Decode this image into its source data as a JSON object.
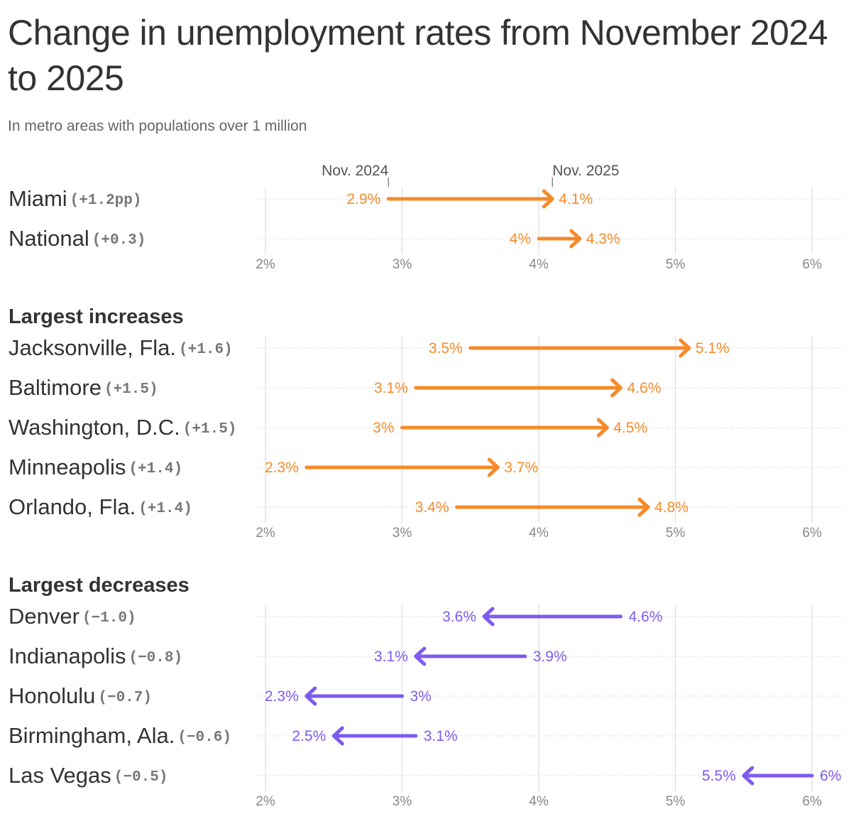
{
  "title": "Change in unemployment rates from November 2024 to 2025",
  "subtitle": "In metro areas with populations over 1 million",
  "colors": {
    "increase": "#f58b2a",
    "decrease": "#7e5bef",
    "text": "#333333",
    "muted": "#888888",
    "grid": "#dddddd"
  },
  "chart_data": {
    "type": "dumbbell-arrow",
    "xlim": [
      2,
      6
    ],
    "ticks": [
      "2%",
      "3%",
      "4%",
      "5%",
      "6%"
    ],
    "tick_values": [
      2,
      3,
      4,
      5,
      6
    ],
    "legend": {
      "start_label": "Nov. 2024",
      "end_label": "Nov. 2025"
    },
    "sections": [
      {
        "heading": "",
        "rows": [
          {
            "name": "Miami",
            "change": "(+1.2pp)",
            "start": 2.9,
            "end": 4.1,
            "start_label": "2.9%",
            "end_label": "4.1%"
          },
          {
            "name": "National",
            "change": "(+0.3)",
            "start": 4.0,
            "end": 4.3,
            "start_label": "4%",
            "end_label": "4.3%"
          }
        ]
      },
      {
        "heading": "Largest increases",
        "rows": [
          {
            "name": "Jacksonville, Fla.",
            "change": "(+1.6)",
            "start": 3.5,
            "end": 5.1,
            "start_label": "3.5%",
            "end_label": "5.1%"
          },
          {
            "name": "Baltimore",
            "change": "(+1.5)",
            "start": 3.1,
            "end": 4.6,
            "start_label": "3.1%",
            "end_label": "4.6%"
          },
          {
            "name": "Washington, D.C.",
            "change": "(+1.5)",
            "start": 3.0,
            "end": 4.5,
            "start_label": "3%",
            "end_label": "4.5%"
          },
          {
            "name": "Minneapolis",
            "change": "(+1.4)",
            "start": 2.3,
            "end": 3.7,
            "start_label": "2.3%",
            "end_label": "3.7%"
          },
          {
            "name": "Orlando, Fla.",
            "change": "(+1.4)",
            "start": 3.4,
            "end": 4.8,
            "start_label": "3.4%",
            "end_label": "4.8%"
          }
        ]
      },
      {
        "heading": "Largest decreases",
        "rows": [
          {
            "name": "Denver",
            "change": "(−1.0)",
            "start": 4.6,
            "end": 3.6,
            "start_label": "4.6%",
            "end_label": "3.6%"
          },
          {
            "name": "Indianapolis",
            "change": "(−0.8)",
            "start": 3.9,
            "end": 3.1,
            "start_label": "3.9%",
            "end_label": "3.1%"
          },
          {
            "name": "Honolulu",
            "change": "(−0.7)",
            "start": 3.0,
            "end": 2.3,
            "start_label": "3%",
            "end_label": "2.3%"
          },
          {
            "name": "Birmingham, Ala.",
            "change": "(−0.6)",
            "start": 3.1,
            "end": 2.5,
            "start_label": "3.1%",
            "end_label": "2.5%"
          },
          {
            "name": "Las Vegas",
            "change": "(−0.5)",
            "start": 6.0,
            "end": 5.5,
            "start_label": "6%",
            "end_label": "5.5%"
          }
        ]
      }
    ]
  }
}
